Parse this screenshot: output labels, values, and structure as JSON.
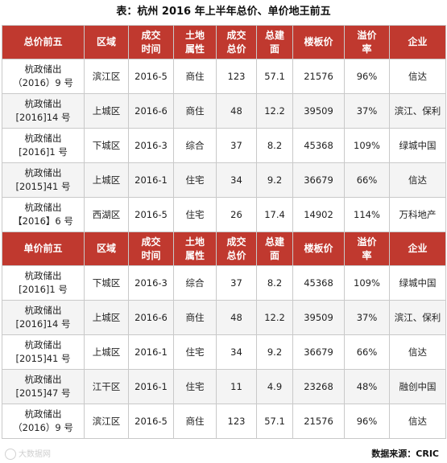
{
  "title": "表：杭州 2016 年上半年总价、单价地王前五",
  "headers": {
    "rank_total": "总价前五",
    "rank_unit": "单价前五",
    "district": "区域",
    "date": [
      "成交",
      "时间"
    ],
    "land_type": [
      "土地",
      "属性"
    ],
    "total_price": [
      "成交",
      "总价"
    ],
    "floor_area": [
      "总建",
      "面"
    ],
    "floor_price": "楼板价",
    "premium": [
      "溢价",
      "率"
    ],
    "company": "企业"
  },
  "total_top5": [
    {
      "parcel": [
        "杭政储出",
        "（2016）9 号"
      ],
      "district": "滨江区",
      "date": "2016-5",
      "type": "商住",
      "price": "123",
      "area": "57.1",
      "floor_price": "21576",
      "premium": "96%",
      "company": "信达"
    },
    {
      "parcel": [
        "杭政储出",
        "[2016]14 号"
      ],
      "district": "上城区",
      "date": "2016-6",
      "type": "商住",
      "price": "48",
      "area": "12.2",
      "floor_price": "39509",
      "premium": "37%",
      "company": "滨江、保利"
    },
    {
      "parcel": [
        "杭政储出",
        "[2016]1 号"
      ],
      "district": "下城区",
      "date": "2016-3",
      "type": "综合",
      "price": "37",
      "area": "8.2",
      "floor_price": "45368",
      "premium": "109%",
      "company": "绿城中国"
    },
    {
      "parcel": [
        "杭政储出",
        "[2015]41 号"
      ],
      "district": "上城区",
      "date": "2016-1",
      "type": "住宅",
      "price": "34",
      "area": "9.2",
      "floor_price": "36679",
      "premium": "66%",
      "company": "信达"
    },
    {
      "parcel": [
        "杭政储出",
        "【2016】6 号"
      ],
      "district": "西湖区",
      "date": "2016-5",
      "type": "住宅",
      "price": "26",
      "area": "17.4",
      "floor_price": "14902",
      "premium": "114%",
      "company": "万科地产"
    }
  ],
  "unit_top5": [
    {
      "parcel": [
        "杭政储出",
        "[2016]1 号"
      ],
      "district": "下城区",
      "date": "2016-3",
      "type": "综合",
      "price": "37",
      "area": "8.2",
      "floor_price": "45368",
      "premium": "109%",
      "company": "绿城中国"
    },
    {
      "parcel": [
        "杭政储出",
        "[2016]14 号"
      ],
      "district": "上城区",
      "date": "2016-6",
      "type": "商住",
      "price": "48",
      "area": "12.2",
      "floor_price": "39509",
      "premium": "37%",
      "company": "滨江、保利"
    },
    {
      "parcel": [
        "杭政储出",
        "[2015]41 号"
      ],
      "district": "上城区",
      "date": "2016-1",
      "type": "住宅",
      "price": "34",
      "area": "9.2",
      "floor_price": "36679",
      "premium": "66%",
      "company": "信达"
    },
    {
      "parcel": [
        "杭政储出",
        "[2015]47 号"
      ],
      "district": "江干区",
      "date": "2016-1",
      "type": "住宅",
      "price": "11",
      "area": "4.9",
      "floor_price": "23268",
      "premium": "48%",
      "company": "融创中国"
    },
    {
      "parcel": [
        "杭政储出",
        "（2016）9 号"
      ],
      "district": "滨江区",
      "date": "2016-5",
      "type": "商住",
      "price": "123",
      "area": "57.1",
      "floor_price": "21576",
      "premium": "96%",
      "company": "信达"
    }
  ],
  "watermark": "大数据网",
  "source": "数据来源：CRIC",
  "colors": {
    "header_bg": "#c0392f",
    "header_text": "#ffffff",
    "border": "#c9c9c9"
  }
}
